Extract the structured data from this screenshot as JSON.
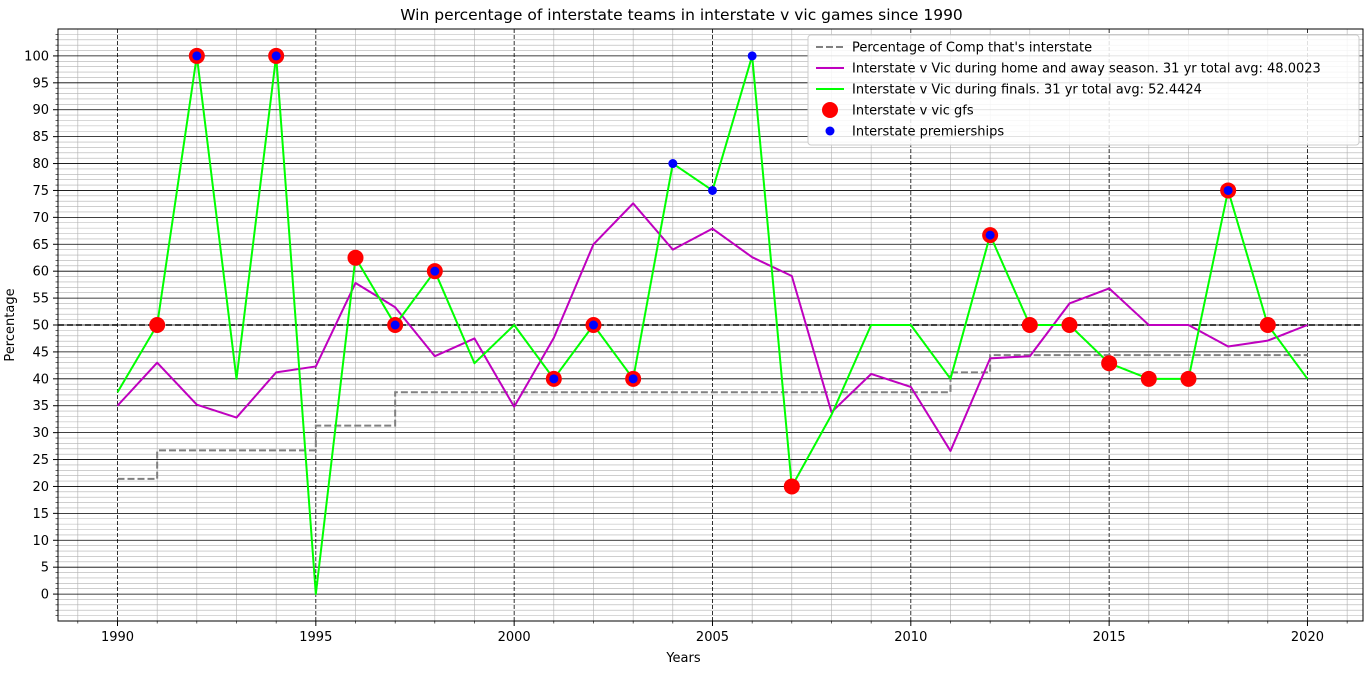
{
  "chart_data": {
    "type": "line",
    "title": "Win percentage of interstate teams in interstate v vic games since 1990",
    "xlabel": "Years",
    "ylabel": "Percentage",
    "xlim": [
      1988.5,
      2021.4
    ],
    "ylim": [
      -5,
      105
    ],
    "xticks": [
      1990,
      1995,
      2000,
      2005,
      2010,
      2015,
      2020
    ],
    "yticks": [
      0,
      5,
      10,
      15,
      20,
      25,
      30,
      35,
      40,
      45,
      50,
      55,
      60,
      65,
      70,
      75,
      80,
      85,
      90,
      95,
      100
    ],
    "grid": true,
    "reference_line": 50,
    "legend_position": "upper right",
    "series": [
      {
        "name": "Percentage of Comp that's interstate",
        "kind": "step",
        "color": "#808080",
        "x": [
          1990,
          1991,
          1992,
          1993,
          1994,
          1995,
          1996,
          1997,
          1998,
          1999,
          2000,
          2001,
          2002,
          2003,
          2004,
          2005,
          2006,
          2007,
          2008,
          2009,
          2010,
          2011,
          2012,
          2013,
          2014,
          2015,
          2016,
          2017,
          2018,
          2019,
          2020
        ],
        "values": [
          21.4,
          26.7,
          26.7,
          26.7,
          26.7,
          31.3,
          31.3,
          37.5,
          37.5,
          37.5,
          37.5,
          37.5,
          37.5,
          37.5,
          37.5,
          37.5,
          37.5,
          37.5,
          37.5,
          37.5,
          37.5,
          41.2,
          44.4,
          44.4,
          44.4,
          44.4,
          44.4,
          44.4,
          44.4,
          44.4,
          44.4
        ]
      },
      {
        "name": "Interstate v Vic during home and away season. 31 yr total avg: 48.0023",
        "kind": "line",
        "color": "#bf00bf",
        "x": [
          1990,
          1991,
          1992,
          1993,
          1994,
          1995,
          1996,
          1997,
          1998,
          1999,
          2000,
          2001,
          2002,
          2003,
          2004,
          2005,
          2006,
          2007,
          2008,
          2009,
          2010,
          2011,
          2012,
          2013,
          2014,
          2015,
          2016,
          2017,
          2018,
          2019,
          2020
        ],
        "values": [
          35,
          43,
          35.2,
          32.8,
          41.2,
          42.3,
          57.8,
          53.3,
          44.2,
          47.5,
          34.8,
          47.6,
          65,
          72.6,
          64,
          67.9,
          62.6,
          59.1,
          33.8,
          40.9,
          38.5,
          26.6,
          43.8,
          44.2,
          54,
          56.8,
          50,
          50,
          46,
          47.1,
          50
        ]
      },
      {
        "name": "Interstate v Vic during finals. 31 yr total avg: 52.4424",
        "kind": "line",
        "color": "#00ff00",
        "x": [
          1990,
          1991,
          1992,
          1993,
          1994,
          1995,
          1996,
          1997,
          1998,
          1999,
          2000,
          2001,
          2002,
          2003,
          2004,
          2005,
          2006,
          2007,
          2008,
          2009,
          2010,
          2011,
          2012,
          2013,
          2014,
          2015,
          2016,
          2017,
          2018,
          2019,
          2020
        ],
        "values": [
          37.5,
          50,
          100,
          40,
          100,
          0,
          62.5,
          50,
          60,
          42.9,
          50,
          40,
          50,
          40,
          80,
          75,
          100,
          20,
          33.3,
          50,
          50,
          40,
          66.7,
          50,
          50,
          42.9,
          40,
          40,
          75,
          50,
          40
        ]
      },
      {
        "name": "Interstate v vic gfs",
        "kind": "scatter",
        "color": "#ff0000",
        "x": [
          1991,
          1992,
          1994,
          1996,
          1997,
          1998,
          2001,
          2002,
          2003,
          2007,
          2012,
          2013,
          2014,
          2015,
          2016,
          2017,
          2018,
          2019
        ],
        "values": [
          50,
          100,
          100,
          62.5,
          50,
          60,
          40,
          50,
          40,
          20,
          66.7,
          50,
          50,
          42.9,
          40,
          40,
          75,
          50
        ]
      },
      {
        "name": "Interstate premierships",
        "kind": "scatter",
        "color": "#0000ff",
        "x": [
          1992,
          1994,
          1997,
          1998,
          2001,
          2002,
          2003,
          2004,
          2005,
          2006,
          2012,
          2018
        ],
        "values": [
          100,
          100,
          50,
          60,
          40,
          50,
          40,
          80,
          75,
          100,
          66.7,
          75
        ]
      }
    ]
  }
}
